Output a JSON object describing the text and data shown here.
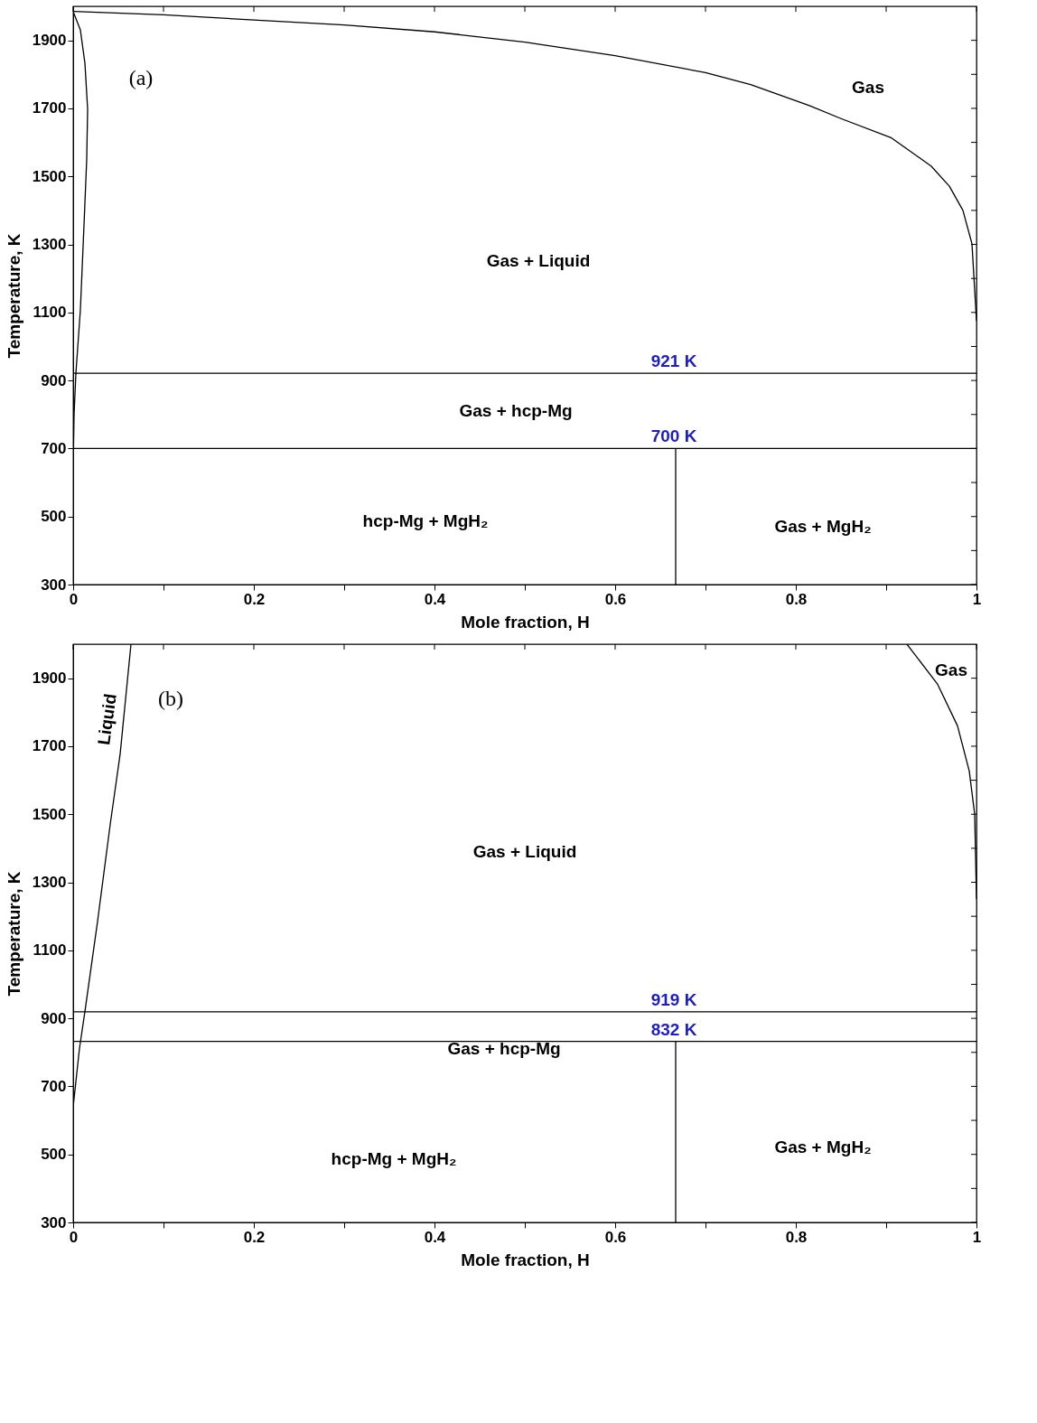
{
  "chart_data": [
    {
      "type": "line",
      "xlabel": "Mole fraction, H",
      "ylabel": "Temperature, K",
      "xlim": [
        0,
        1
      ],
      "ylim": [
        300,
        2000
      ],
      "xticks": [
        0,
        {
          "value": 0.1,
          "label": null
        },
        0.2,
        {
          "value": 0.3,
          "label": null
        },
        0.4,
        {
          "value": 0.5,
          "label": null
        },
        0.6,
        {
          "value": 0.7,
          "label": null
        },
        0.8,
        {
          "value": 0.9,
          "label": null
        },
        1
      ],
      "yticks": [
        300,
        {
          "value": 400,
          "label": null
        },
        500,
        {
          "value": 600,
          "label": null
        },
        700,
        {
          "value": 800,
          "label": null
        },
        900,
        {
          "value": 1000,
          "label": null
        },
        1100,
        {
          "value": 1200,
          "label": null
        },
        1300,
        {
          "value": 1400,
          "label": null
        },
        1500,
        {
          "value": 1600,
          "label": null
        },
        1700,
        {
          "value": 1800,
          "label": null
        },
        1900
      ],
      "grid": false,
      "series": [
        {
          "color": "#000000",
          "x": [
            0,
            0.1,
            0.2,
            0.3,
            0.4,
            0.5,
            0.6,
            0.7,
            0.75,
            0.815,
            0.85,
            0.906,
            0.95,
            0.97,
            0.985,
            0.995,
            1.0
          ],
          "values": [
            1985,
            1975,
            1960,
            1945,
            1925,
            1895,
            1855,
            1805,
            1770,
            1708,
            1670,
            1613,
            1530,
            1471,
            1400,
            1302,
            1075
          ]
        },
        {
          "color": "#000000",
          "x": [
            0,
            0.008,
            0.013,
            0.016,
            0.015,
            0.012,
            0.008,
            0.003,
            0.001,
            0
          ],
          "values": [
            1985,
            1930,
            1833,
            1698,
            1551,
            1357,
            1108,
            921,
            800,
            640
          ]
        },
        {
          "color": "#000000",
          "x": [
            0.667,
            0.667
          ],
          "values": [
            300,
            700
          ]
        }
      ],
      "ref_lines": [
        {
          "axis": "y",
          "value": 921,
          "label": "921 K",
          "color": "#000000"
        },
        {
          "axis": "y",
          "value": 700,
          "label": "700 K",
          "color": "#000000"
        }
      ],
      "annotations": [
        "(a)",
        "Gas",
        "Gas + Liquid",
        "Gas + hcp-Mg",
        "hcp-Mg + MgH₂",
        "Gas + MgH₂"
      ]
    },
    {
      "type": "line",
      "xlabel": "Mole fraction, H",
      "ylabel": "Temperature, K",
      "xlim": [
        0,
        1
      ],
      "ylim": [
        300,
        2000
      ],
      "xticks": [
        0,
        {
          "value": 0.1,
          "label": null
        },
        0.2,
        {
          "value": 0.3,
          "label": null
        },
        0.4,
        {
          "value": 0.5,
          "label": null
        },
        0.6,
        {
          "value": 0.7,
          "label": null
        },
        0.8,
        {
          "value": 0.9,
          "label": null
        },
        1
      ],
      "yticks": [
        300,
        {
          "value": 400,
          "label": null
        },
        500,
        {
          "value": 600,
          "label": null
        },
        700,
        {
          "value": 800,
          "label": null
        },
        900,
        {
          "value": 1000,
          "label": null
        },
        1100,
        {
          "value": 1200,
          "label": null
        },
        1300,
        {
          "value": 1400,
          "label": null
        },
        1500,
        {
          "value": 1600,
          "label": null
        },
        1700,
        {
          "value": 1800,
          "label": null
        },
        1900
      ],
      "grid": false,
      "series": [
        {
          "color": "#000000",
          "x": [
            0,
            0.007,
            0.013,
            0.027,
            0.041,
            0.052,
            0.064
          ],
          "values": [
            640,
            812,
            920,
            1185,
            1470,
            1677,
            2000
          ]
        },
        {
          "color": "#000000",
          "x": [
            0.923,
            0.957,
            0.979,
            0.992,
            0.998,
            1.0
          ],
          "values": [
            2000,
            1882,
            1760,
            1627,
            1500,
            1250
          ]
        },
        {
          "color": "#000000",
          "x": [
            0.667,
            0.667
          ],
          "values": [
            300,
            832
          ]
        }
      ],
      "ref_lines": [
        {
          "axis": "y",
          "value": 919,
          "label": "919 K",
          "color": "#000000"
        },
        {
          "axis": "y",
          "value": 832,
          "label": "832 K",
          "color": "#000000"
        }
      ],
      "annotations": [
        "(b)",
        "Liquid",
        "Gas",
        "Gas + Liquid",
        "Gas + hcp-Mg",
        "hcp-Mg + MgH₂",
        "Gas + MgH₂"
      ]
    }
  ]
}
